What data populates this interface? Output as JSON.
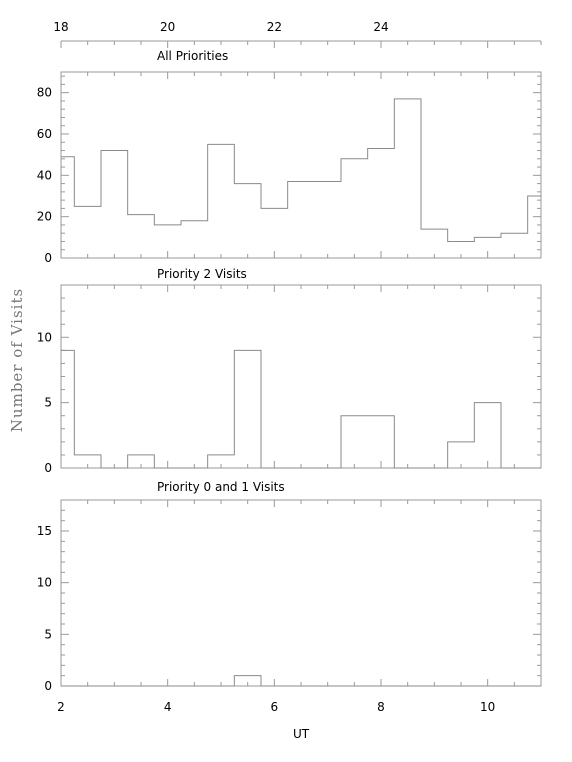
{
  "chart_data": {
    "type": "histogram",
    "ylabel": "Number of Visits",
    "xlabel": "UT",
    "bottom_axis": {
      "range": [
        2,
        11
      ],
      "ticks": [
        "2",
        "4",
        "6",
        "8",
        "10"
      ],
      "tick_values": [
        2,
        4,
        6,
        8,
        10
      ]
    },
    "top_axis": {
      "ticks": [
        "18",
        "20",
        "22",
        "24"
      ],
      "tick_values": [
        18,
        20,
        22,
        24
      ],
      "offset": 16
    },
    "bin_edges": [
      2,
      2.25,
      2.75,
      3.25,
      3.75,
      4.25,
      4.75,
      5.25,
      5.75,
      6.25,
      6.75,
      7.25,
      7.75,
      8.25,
      8.75,
      9.25,
      9.75,
      10.25,
      10.75,
      11
    ],
    "panels": [
      {
        "title": "All Priorities",
        "ylim": [
          0,
          90
        ],
        "yticks": [
          "0",
          "20",
          "40",
          "60",
          "80"
        ],
        "ytick_values": [
          0,
          20,
          40,
          60,
          80
        ],
        "values": [
          49,
          25,
          52,
          21,
          16,
          18,
          55,
          36,
          24,
          37,
          37,
          48,
          53,
          77,
          14,
          8,
          10,
          12,
          30
        ]
      },
      {
        "title": "Priority 2 Visits",
        "ylim": [
          0,
          14
        ],
        "yticks": [
          "0",
          "5",
          "10"
        ],
        "ytick_values": [
          0,
          5,
          10
        ],
        "values": [
          9,
          1,
          0,
          1,
          0,
          0,
          1,
          9,
          0,
          0,
          0,
          4,
          4,
          0,
          0,
          2,
          5,
          0,
          0
        ]
      },
      {
        "title": "Priority 0 and 1 Visits",
        "ylim": [
          0,
          18
        ],
        "yticks": [
          "0",
          "5",
          "10",
          "15"
        ],
        "ytick_values": [
          0,
          5,
          10,
          15
        ],
        "values": [
          0,
          0,
          0,
          0,
          0,
          0,
          0,
          1,
          0,
          0,
          0,
          0,
          0,
          0,
          0,
          0,
          0,
          0,
          0
        ]
      }
    ]
  }
}
